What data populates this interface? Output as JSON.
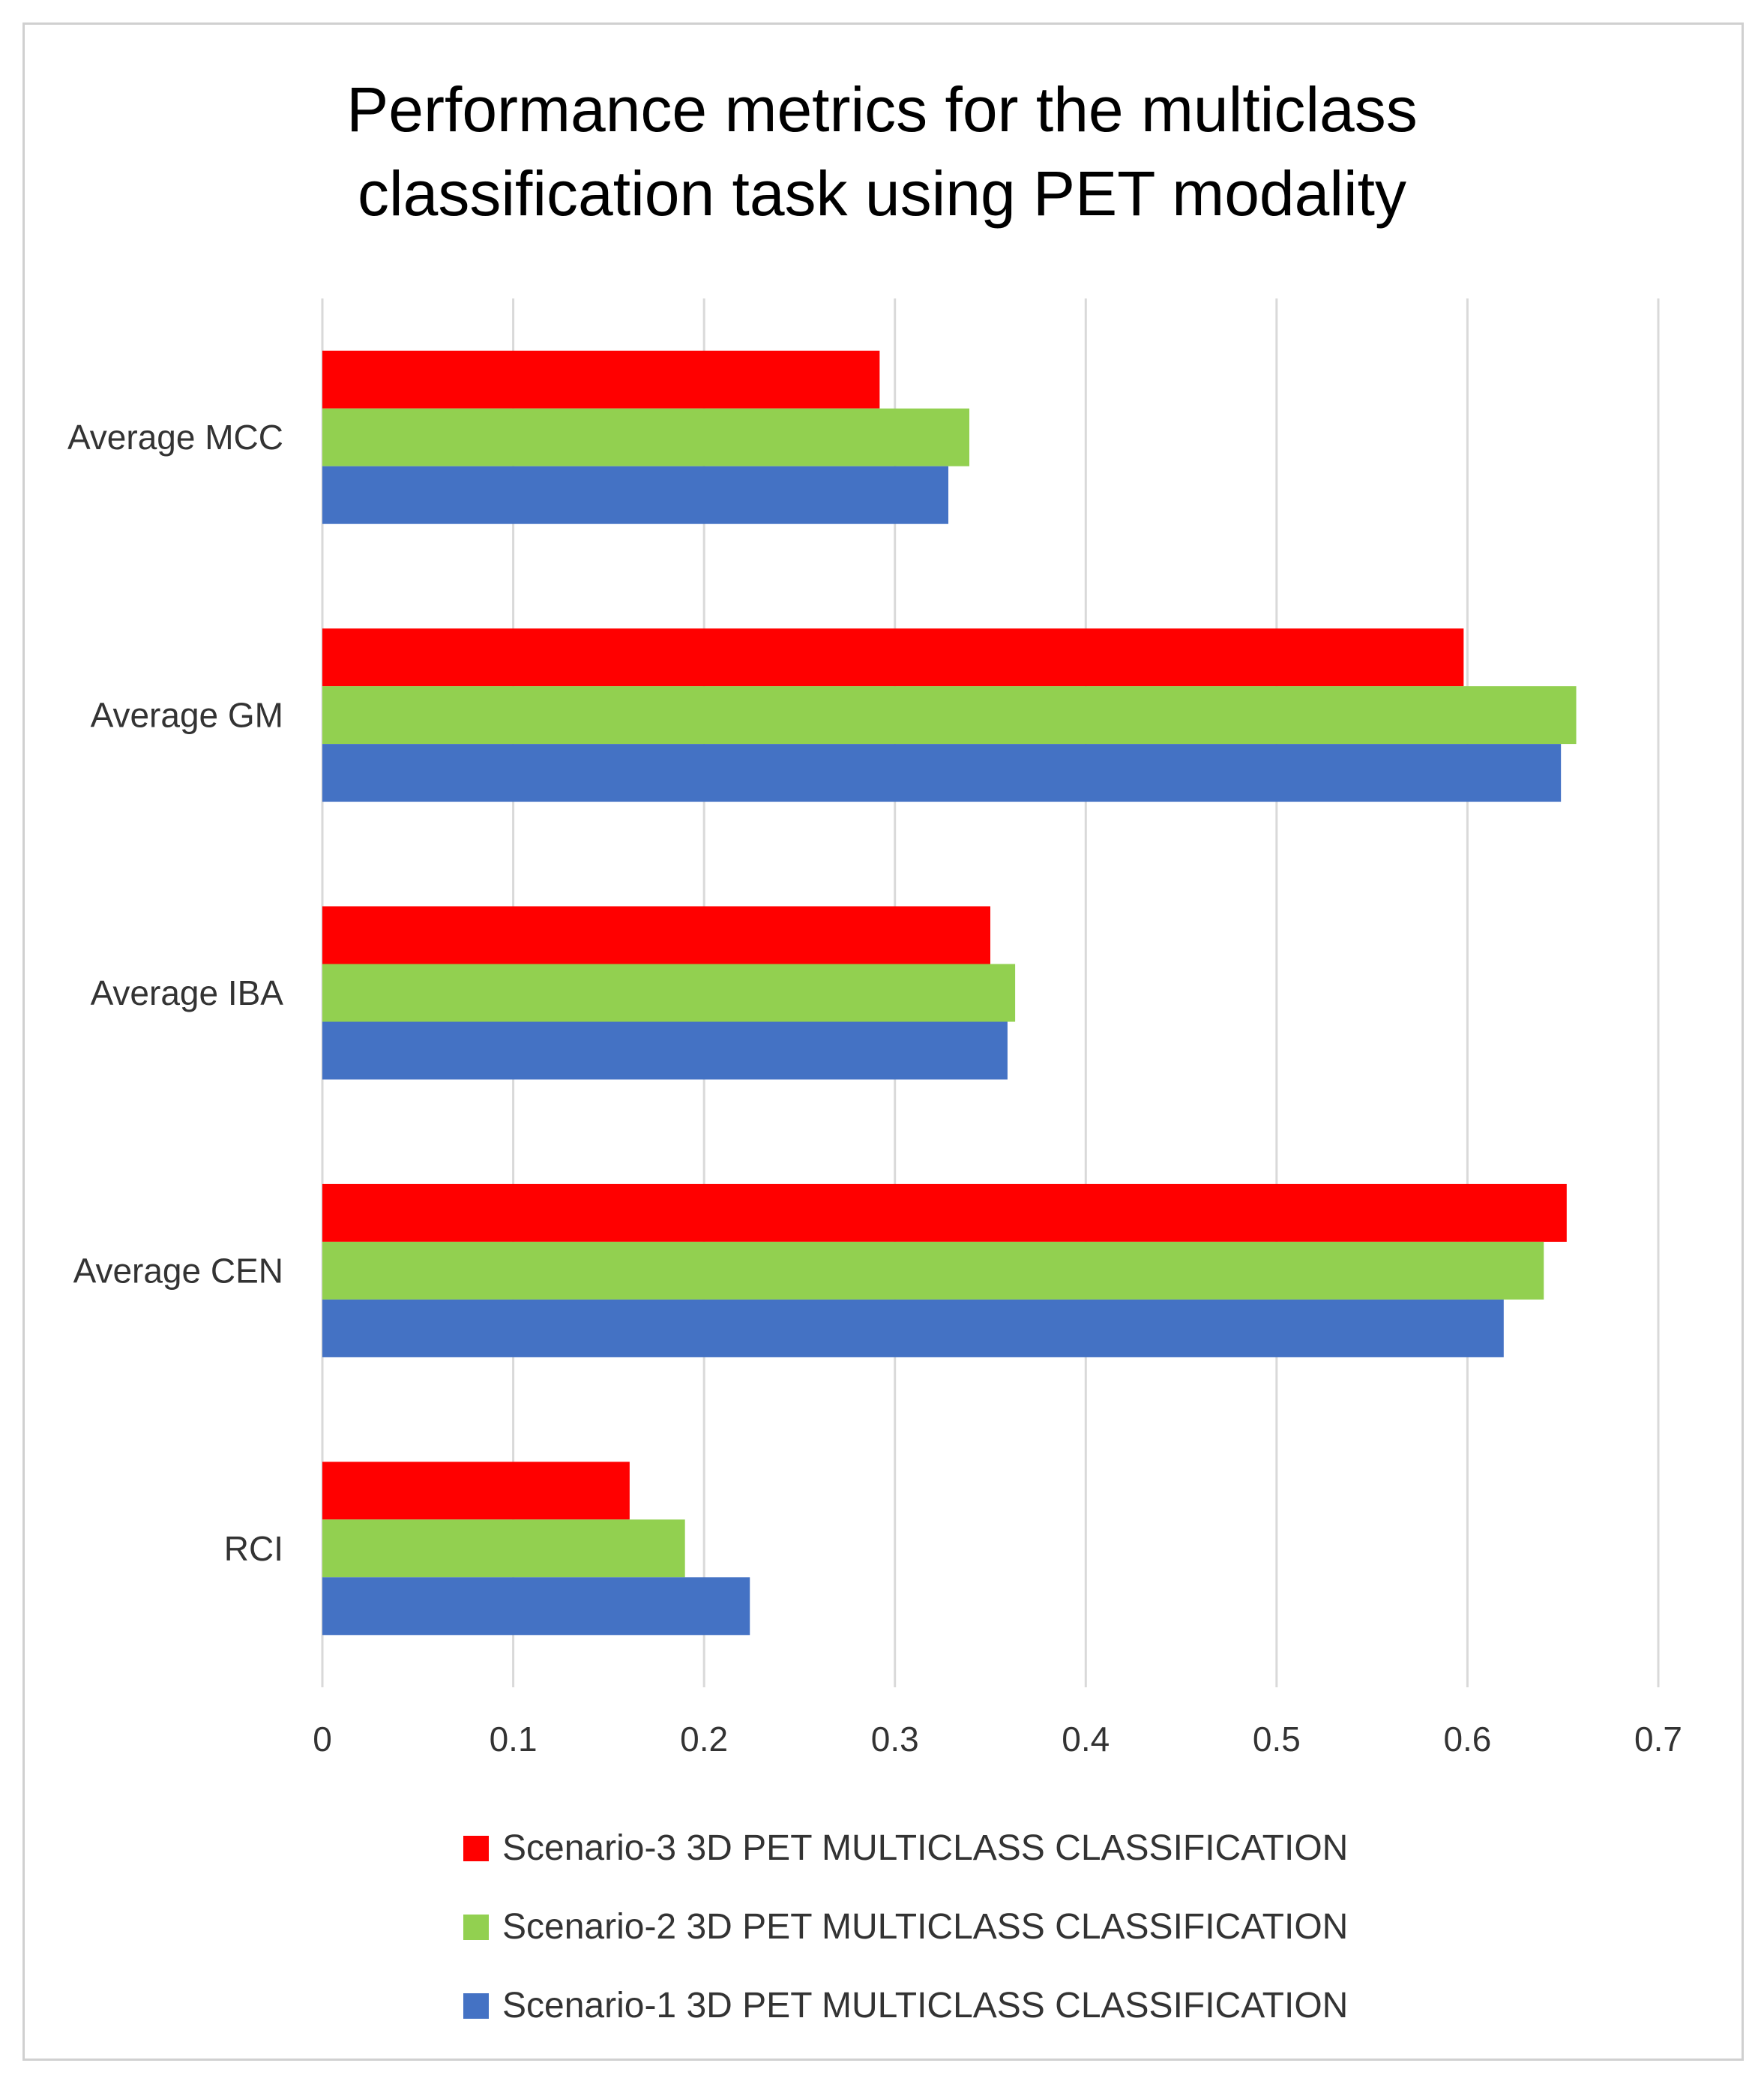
{
  "chart_data": {
    "type": "bar",
    "orientation": "horizontal",
    "title": "Performance metrics for the multiclass classification task using PET modality",
    "title_lines": [
      "Performance metrics for the multiclass",
      "classification task using PET modality"
    ],
    "categories": [
      "Average MCC",
      "Average GM",
      "Average IBA",
      "Average CEN",
      "RCI"
    ],
    "series": [
      {
        "name": "Scenario-3 3D PET MULTICLASS CLASSIFICATION",
        "color": "#ff0000",
        "values": [
          0.292,
          0.598,
          0.35,
          0.652,
          0.161
        ]
      },
      {
        "name": "Scenario-2 3D PET MULTICLASS CLASSIFICATION",
        "color": "#92d050",
        "values": [
          0.339,
          0.657,
          0.363,
          0.64,
          0.19
        ]
      },
      {
        "name": "Scenario-1 3D PET MULTICLASS CLASSIFICATION",
        "color": "#4472c4",
        "values": [
          0.328,
          0.649,
          0.359,
          0.619,
          0.224
        ]
      }
    ],
    "xlim": [
      0,
      0.7
    ],
    "x_ticks": [
      "0",
      "0.1",
      "0.2",
      "0.3",
      "0.4",
      "0.5",
      "0.6",
      "0.7"
    ],
    "grid": true,
    "legend_position": "bottom"
  }
}
